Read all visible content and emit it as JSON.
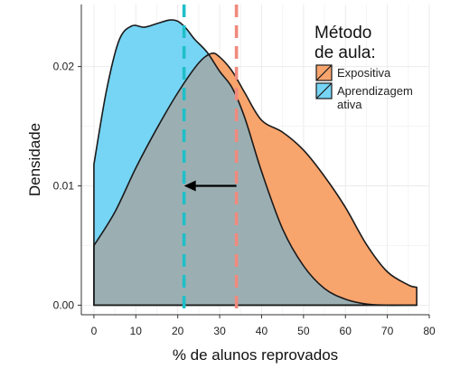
{
  "chart_data": {
    "type": "area",
    "title": "",
    "xlabel": "% de alunos reprovados",
    "ylabel": "Densidade",
    "xlim": [
      -3,
      80
    ],
    "ylim": [
      -0.0008,
      0.0252
    ],
    "x_ticks": [
      0,
      10,
      20,
      30,
      40,
      50,
      60,
      70,
      80
    ],
    "y_ticks": [
      0.0,
      0.01,
      0.02
    ],
    "y_tick_labels": [
      "0.00",
      "0.01",
      "0.02"
    ],
    "grid": true,
    "legend": {
      "title": "Método de aula:",
      "title_lines": [
        "Método",
        "de aula:"
      ],
      "placement": "top-right",
      "entries": [
        "Expositiva",
        "Aprendizagem ativa"
      ],
      "entry_lines": [
        [
          "Expositiva"
        ],
        [
          "Aprendizagem",
          "ativa"
        ]
      ]
    },
    "series": [
      {
        "name": "Expositiva",
        "color": "#F8A46D",
        "x": [
          0,
          5,
          10,
          15,
          20,
          25,
          28,
          30,
          33,
          36,
          40,
          45,
          50,
          55,
          60,
          65,
          70,
          75,
          77
        ],
        "values": [
          0.005,
          0.0078,
          0.0115,
          0.0148,
          0.0178,
          0.0203,
          0.0211,
          0.0208,
          0.0196,
          0.0178,
          0.0155,
          0.0145,
          0.013,
          0.0108,
          0.0082,
          0.0051,
          0.0028,
          0.0017,
          0.0015
        ]
      },
      {
        "name": "Aprendizagem ativa",
        "color": "#76D4F4",
        "x": [
          0,
          3,
          6,
          9,
          12,
          15,
          18,
          20,
          22,
          24,
          27,
          30,
          33,
          36,
          40,
          45,
          50,
          55,
          60,
          65,
          70,
          75,
          77
        ],
        "values": [
          0.0118,
          0.018,
          0.0222,
          0.0234,
          0.0233,
          0.0236,
          0.0239,
          0.0238,
          0.0232,
          0.0223,
          0.0212,
          0.0196,
          0.0182,
          0.0157,
          0.0112,
          0.0064,
          0.0033,
          0.0014,
          0.0005,
          0.0001,
          0.0,
          0.0,
          0.0
        ]
      }
    ],
    "vlines": [
      {
        "series": "Aprendizagem ativa",
        "x": 21.5,
        "color": "#1FBFC9",
        "style": "dashed"
      },
      {
        "series": "Expositiva",
        "x": 34,
        "color": "#F08A7E",
        "style": "dashed"
      }
    ],
    "annotation_arrow": {
      "from": [
        34,
        0.01
      ],
      "to": [
        21.5,
        0.01
      ],
      "color": "#000000"
    },
    "overlap_color": "#9BAFB3",
    "background_color": "#FFFFFF",
    "grid_color": "#EBEBEB"
  }
}
